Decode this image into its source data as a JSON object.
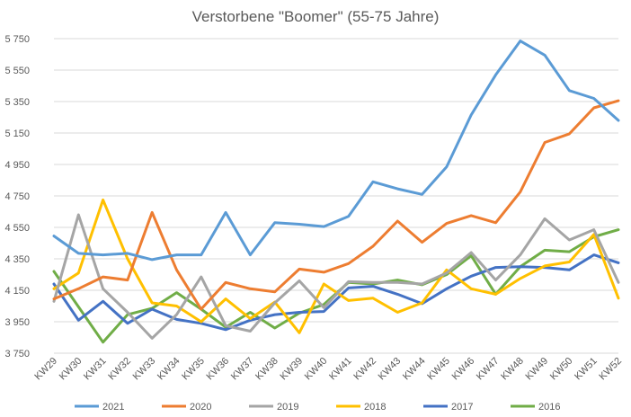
{
  "chart_data": {
    "type": "line",
    "title": "Verstorbene \"Boomer\" (55-75 Jahre)",
    "xlabel": "",
    "ylabel": "",
    "ylim": [
      3750,
      5750
    ],
    "yticks": [
      "3 750",
      "3 950",
      "4 150",
      "4 350",
      "4 550",
      "4 750",
      "4 950",
      "5 150",
      "5 350",
      "5 550",
      "5 750"
    ],
    "grid": true,
    "legend_position": "bottom",
    "categories": [
      "KW29",
      "KW30",
      "KW31",
      "KW32",
      "KW33",
      "KW34",
      "KW35",
      "KW36",
      "KW37",
      "KW38",
      "KW39",
      "KW40",
      "KW41",
      "KW42",
      "KW43",
      "KW44",
      "KW45",
      "KW46",
      "KW47",
      "KW48",
      "KW49",
      "KW50",
      "KW51",
      "KW52"
    ],
    "series": [
      {
        "name": "2021",
        "color": "#5b9bd5",
        "values": [
          4495,
          4385,
          4375,
          4385,
          4345,
          4375,
          4375,
          4645,
          4375,
          4580,
          4570,
          4555,
          4620,
          4840,
          4795,
          4760,
          4935,
          5265,
          5520,
          5735,
          5645,
          5420,
          5370,
          5230
        ]
      },
      {
        "name": "2020",
        "color": "#ed7d31",
        "values": [
          4095,
          4160,
          4235,
          4215,
          4645,
          4280,
          4030,
          4200,
          4160,
          4140,
          4285,
          4265,
          4320,
          4430,
          4590,
          4455,
          4575,
          4625,
          4580,
          4775,
          5090,
          5145,
          5310,
          5355
        ]
      },
      {
        "name": "2019",
        "color": "#a5a5a5",
        "values": [
          4080,
          4630,
          4160,
          4010,
          3845,
          3995,
          4235,
          3925,
          3890,
          4070,
          4210,
          4040,
          4205,
          4200,
          4200,
          4190,
          4260,
          4390,
          4215,
          4375,
          4605,
          4470,
          4535,
          4200
        ]
      },
      {
        "name": "2018",
        "color": "#ffc000",
        "values": [
          4160,
          4260,
          4725,
          4350,
          4070,
          4050,
          3950,
          4095,
          3970,
          4075,
          3880,
          4190,
          4085,
          4100,
          4010,
          4070,
          4280,
          4160,
          4125,
          4225,
          4305,
          4330,
          4505,
          4100
        ]
      },
      {
        "name": "2017",
        "color": "#4472c4",
        "values": [
          4190,
          3960,
          4080,
          3940,
          4030,
          3965,
          3940,
          3900,
          3960,
          3995,
          4010,
          4015,
          4165,
          4175,
          4125,
          4065,
          4160,
          4240,
          4295,
          4300,
          4295,
          4280,
          4375,
          4325
        ]
      },
      {
        "name": "2016",
        "color": "#70ad47",
        "values": [
          4270,
          4045,
          3820,
          3995,
          4035,
          4135,
          4030,
          3915,
          4010,
          3910,
          4005,
          4060,
          4200,
          4190,
          4215,
          4185,
          4250,
          4370,
          4125,
          4300,
          4405,
          4395,
          4490,
          4535
        ]
      }
    ]
  }
}
